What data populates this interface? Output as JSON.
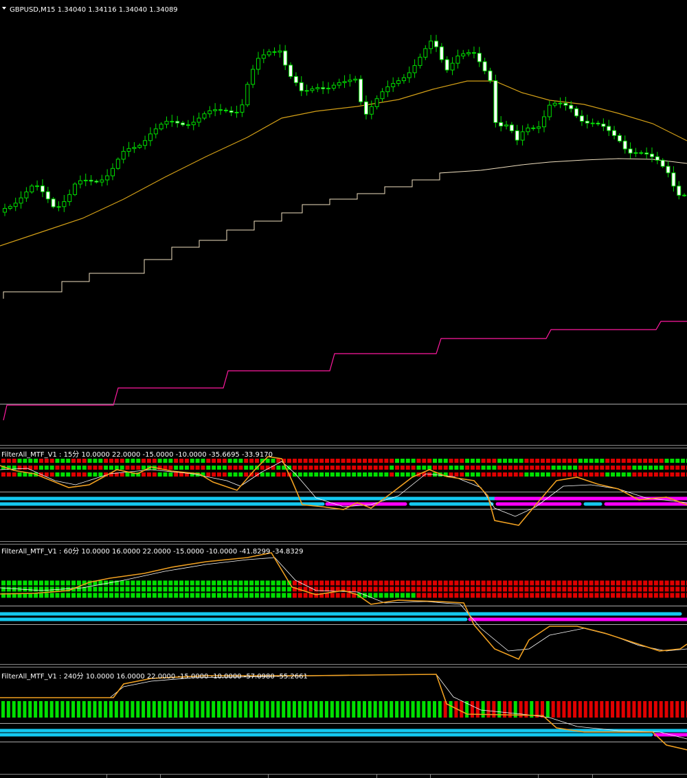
{
  "main_chart": {
    "title": "GBPUSD,M15  1.34040 1.34116 1.34040 1.34089"
  },
  "indicators": [
    {
      "label": "FilterAll_MTF_V1 : 15分 10.0000 22.0000 -15.0000 -10.0000 -35.6695 -33.9170"
    },
    {
      "label": "FilterAll_MTF_V1 : 60分 10.0000 16.0000 22.0000 -15.0000 -10.0000 -41.8299 -34.8329"
    },
    {
      "label": "FilterAll_MTF_V1 : 240分 10.0000 16.0000 22.0000 -15.0000 -10.0000 -57.0980 -55.2661"
    }
  ]
}
